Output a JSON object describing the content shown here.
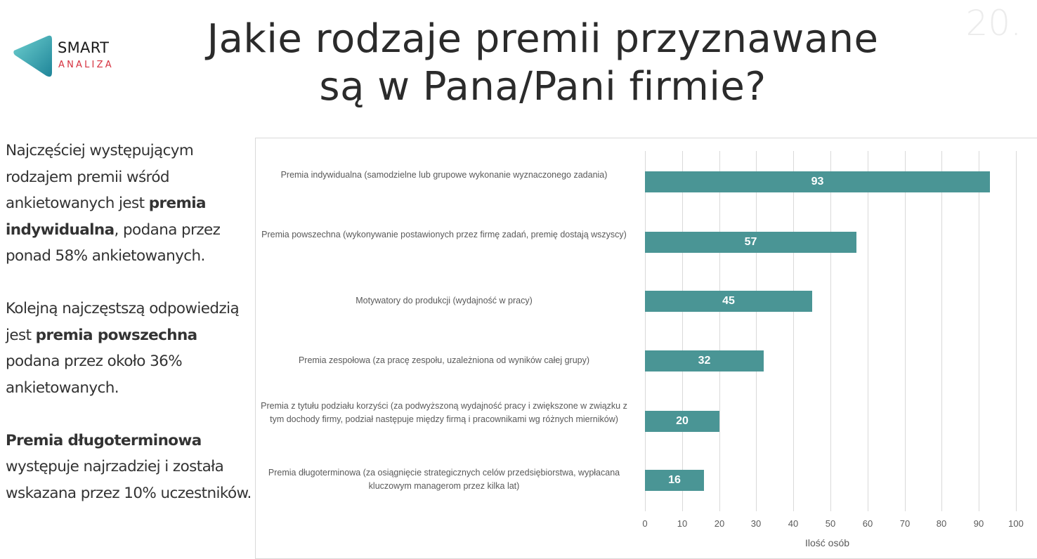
{
  "header": {
    "logo": {
      "line1": "SMART",
      "line2": "ANALIZA",
      "colors": {
        "triangle": "#3aa9b5",
        "text": "#1a1a1a",
        "accent": "#d6313f"
      }
    },
    "title_line1": "Jakie rodzaje premii przyznawane",
    "title_line2": "są w Pana/Pani firmie?",
    "page_number": "20."
  },
  "sidebar": {
    "paragraphs": [
      {
        "before": "Najczęściej występującym rodzajem premii wśród ankietowanych jest ",
        "bold": "premia indywidualna",
        "after": ", podana przez ponad 58% ankietowanych."
      },
      {
        "before": "Kolejną najczęstszą odpowiedzią jest ",
        "bold": "premia powszechna",
        "after": " podana przez około 36% ankietowanych."
      },
      {
        "before": "",
        "bold": "Premia długoterminowa",
        "after": " występuje najrzadziej i została wskazana przez 10% uczestników."
      }
    ]
  },
  "chart_data": {
    "type": "bar",
    "orientation": "horizontal",
    "title": "",
    "xlabel": "Ilość osób",
    "ylabel": "",
    "xlim": [
      0,
      100
    ],
    "x_ticks": [
      "0",
      "10",
      "20",
      "30",
      "40",
      "50",
      "60",
      "70",
      "80",
      "90",
      "100"
    ],
    "grid": true,
    "legend": "none",
    "bar_color": "#4a9595",
    "categories": [
      "Premia indywidualna (samodzielne lub grupowe wykonanie wyznaczonego zadania)",
      "Premia powszechna (wykonywanie postawionych przez firmę zadań, premię dostają wszyscy)",
      "Motywatory do produkcji (wydajność w pracy)",
      "Premia zespołowa (za pracę zespołu, uzależniona od wyników całej grupy)",
      "Premia z tytułu podziału korzyści (za podwyższoną wydajność pracy i zwiększone w związku z tym dochody firmy, podział następuje między firmą i pracownikami wg różnych mierników)",
      "Premia długoterminowa (za osiągnięcie strategicznych celów przedsiębiorstwa, wypłacana kluczowym managerom przez kilka lat)"
    ],
    "values": [
      93,
      57,
      45,
      32,
      20,
      16
    ],
    "data_labels": [
      "93",
      "57",
      "45",
      "32",
      "20",
      "16"
    ]
  }
}
